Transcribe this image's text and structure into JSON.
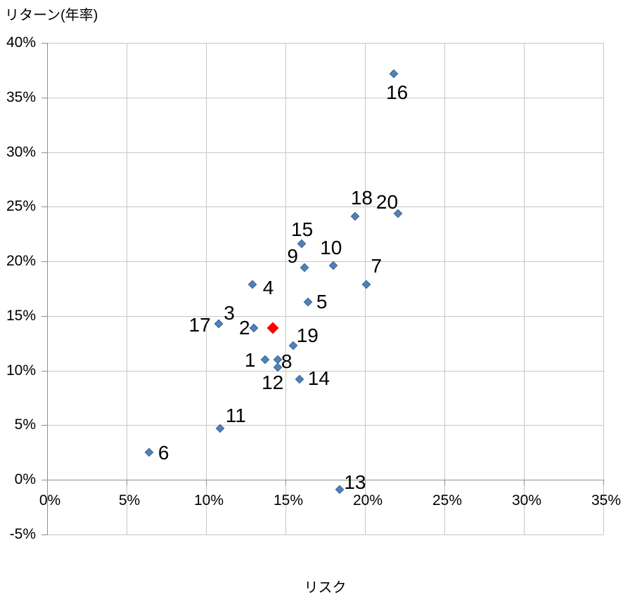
{
  "chart_data": {
    "type": "scatter",
    "y_axis_title": "リターン(年率)",
    "x_axis_title": "リスク",
    "x_axis": {
      "min": 0,
      "max": 35,
      "step": 5,
      "unit": "%",
      "tick_labels": [
        "0%",
        "5%",
        "10%",
        "15%",
        "20%",
        "25%",
        "30%",
        "35%"
      ]
    },
    "y_axis": {
      "min": -5,
      "max": 40,
      "step": 5,
      "unit": "%",
      "tick_labels": [
        "40%",
        "35%",
        "30%",
        "25%",
        "20%",
        "15%",
        "10%",
        "5%",
        "0%",
        "-5%"
      ]
    },
    "grid": true,
    "legend": false,
    "marker_color": "#4F81BD",
    "marker_edge_color": "#39648C",
    "highlight_color": "#FF0000",
    "gridline_color": "#C6C6C6",
    "axis_color": "#8E8E8E",
    "label_color": "#000000",
    "points": [
      {
        "label": "1",
        "x": 13.7,
        "y": 11.0,
        "label_offset": [
          -21,
          1
        ]
      },
      {
        "label": "2",
        "x": 13.0,
        "y": 13.9,
        "label_offset": [
          -13,
          0
        ]
      },
      {
        "label": "3",
        "x": 10.8,
        "y": 14.3,
        "label_offset": [
          15,
          -15
        ]
      },
      {
        "label": "4",
        "x": 12.9,
        "y": 17.9,
        "label_offset": [
          23,
          5
        ]
      },
      {
        "label": "5",
        "x": 16.4,
        "y": 16.3,
        "label_offset": [
          20,
          0
        ]
      },
      {
        "label": "6",
        "x": 6.4,
        "y": 2.5,
        "label_offset": [
          21,
          1
        ]
      },
      {
        "label": "7",
        "x": 20.1,
        "y": 17.9,
        "label_offset": [
          14,
          -26
        ]
      },
      {
        "label": "8",
        "x": 14.5,
        "y": 11.0,
        "label_offset": [
          13,
          3
        ]
      },
      {
        "label": "9",
        "x": 16.2,
        "y": 19.4,
        "label_offset": [
          -17,
          -16
        ]
      },
      {
        "label": "10",
        "x": 18.0,
        "y": 19.6,
        "label_offset": [
          -3,
          -25
        ]
      },
      {
        "label": "11",
        "x": 10.9,
        "y": 4.7,
        "label_offset": [
          22,
          -18
        ]
      },
      {
        "label": "12",
        "x": 14.5,
        "y": 10.3,
        "label_offset": [
          -7,
          22
        ]
      },
      {
        "label": "13",
        "x": 18.4,
        "y": -0.9,
        "label_offset": [
          22,
          -10
        ]
      },
      {
        "label": "14",
        "x": 15.9,
        "y": 9.2,
        "label_offset": [
          27,
          -1
        ]
      },
      {
        "label": "15",
        "x": 16.0,
        "y": 21.6,
        "label_offset": [
          1,
          -20
        ]
      },
      {
        "label": "16",
        "x": 21.8,
        "y": 37.2,
        "label_offset": [
          5,
          27
        ]
      },
      {
        "label": "17",
        "x": 10.8,
        "y": 14.3,
        "label_offset": [
          -27,
          2
        ]
      },
      {
        "label": "18",
        "x": 19.4,
        "y": 24.1,
        "label_offset": [
          9,
          -26
        ]
      },
      {
        "label": "19",
        "x": 15.5,
        "y": 12.3,
        "label_offset": [
          20,
          -14
        ]
      },
      {
        "label": "20",
        "x": 22.1,
        "y": 24.4,
        "label_offset": [
          -16,
          -16
        ]
      }
    ],
    "highlight_point": {
      "x": 14.2,
      "y": 13.9
    }
  }
}
